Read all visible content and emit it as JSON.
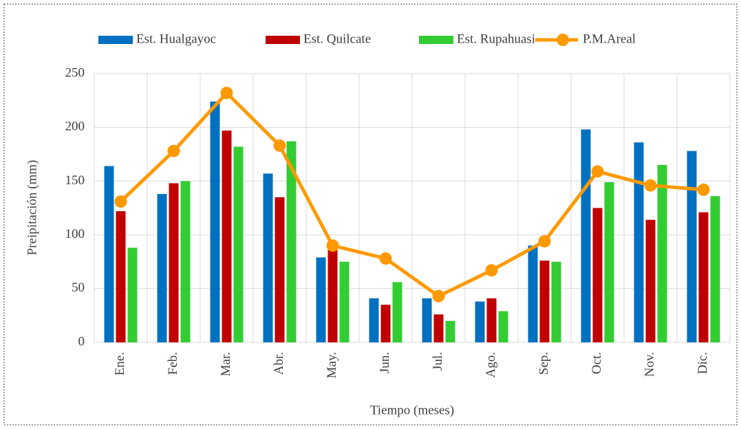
{
  "chart_data": {
    "type": "bar_line",
    "x_label": "Tiempo (meses)",
    "y_label": "Preipitación (mm)",
    "categories": [
      "Ene.",
      "Feb.",
      "Mar.",
      "Abr.",
      "May.",
      "Jun.",
      "Jul.",
      "Ago.",
      "Sep.",
      "Oct.",
      "Nov.",
      "Dic."
    ],
    "series": [
      {
        "name": "Est. Hualgayoc",
        "color": "#0070c0",
        "kind": "bar",
        "values": [
          164,
          138,
          224,
          157,
          79,
          41,
          41,
          38,
          90,
          198,
          186,
          178
        ]
      },
      {
        "name": "Est. Quilcate",
        "color": "#c00000",
        "kind": "bar",
        "values": [
          122,
          148,
          197,
          135,
          88,
          35,
          26,
          41,
          76,
          125,
          114,
          121
        ]
      },
      {
        "name": "Est. Rupahuasi",
        "color": "#33cc33",
        "kind": "bar",
        "values": [
          88,
          150,
          182,
          187,
          75,
          56,
          20,
          29,
          75,
          149,
          165,
          136
        ]
      },
      {
        "name": "P.M.Areal",
        "color": "#ff9900",
        "kind": "line",
        "values": [
          131,
          178,
          232,
          183,
          90,
          78,
          43,
          67,
          94,
          159,
          146,
          142
        ]
      }
    ],
    "ylim": [
      0,
      250
    ],
    "yticks": [
      0,
      50,
      100,
      150,
      200,
      250
    ],
    "grid": true,
    "legend": "top"
  }
}
